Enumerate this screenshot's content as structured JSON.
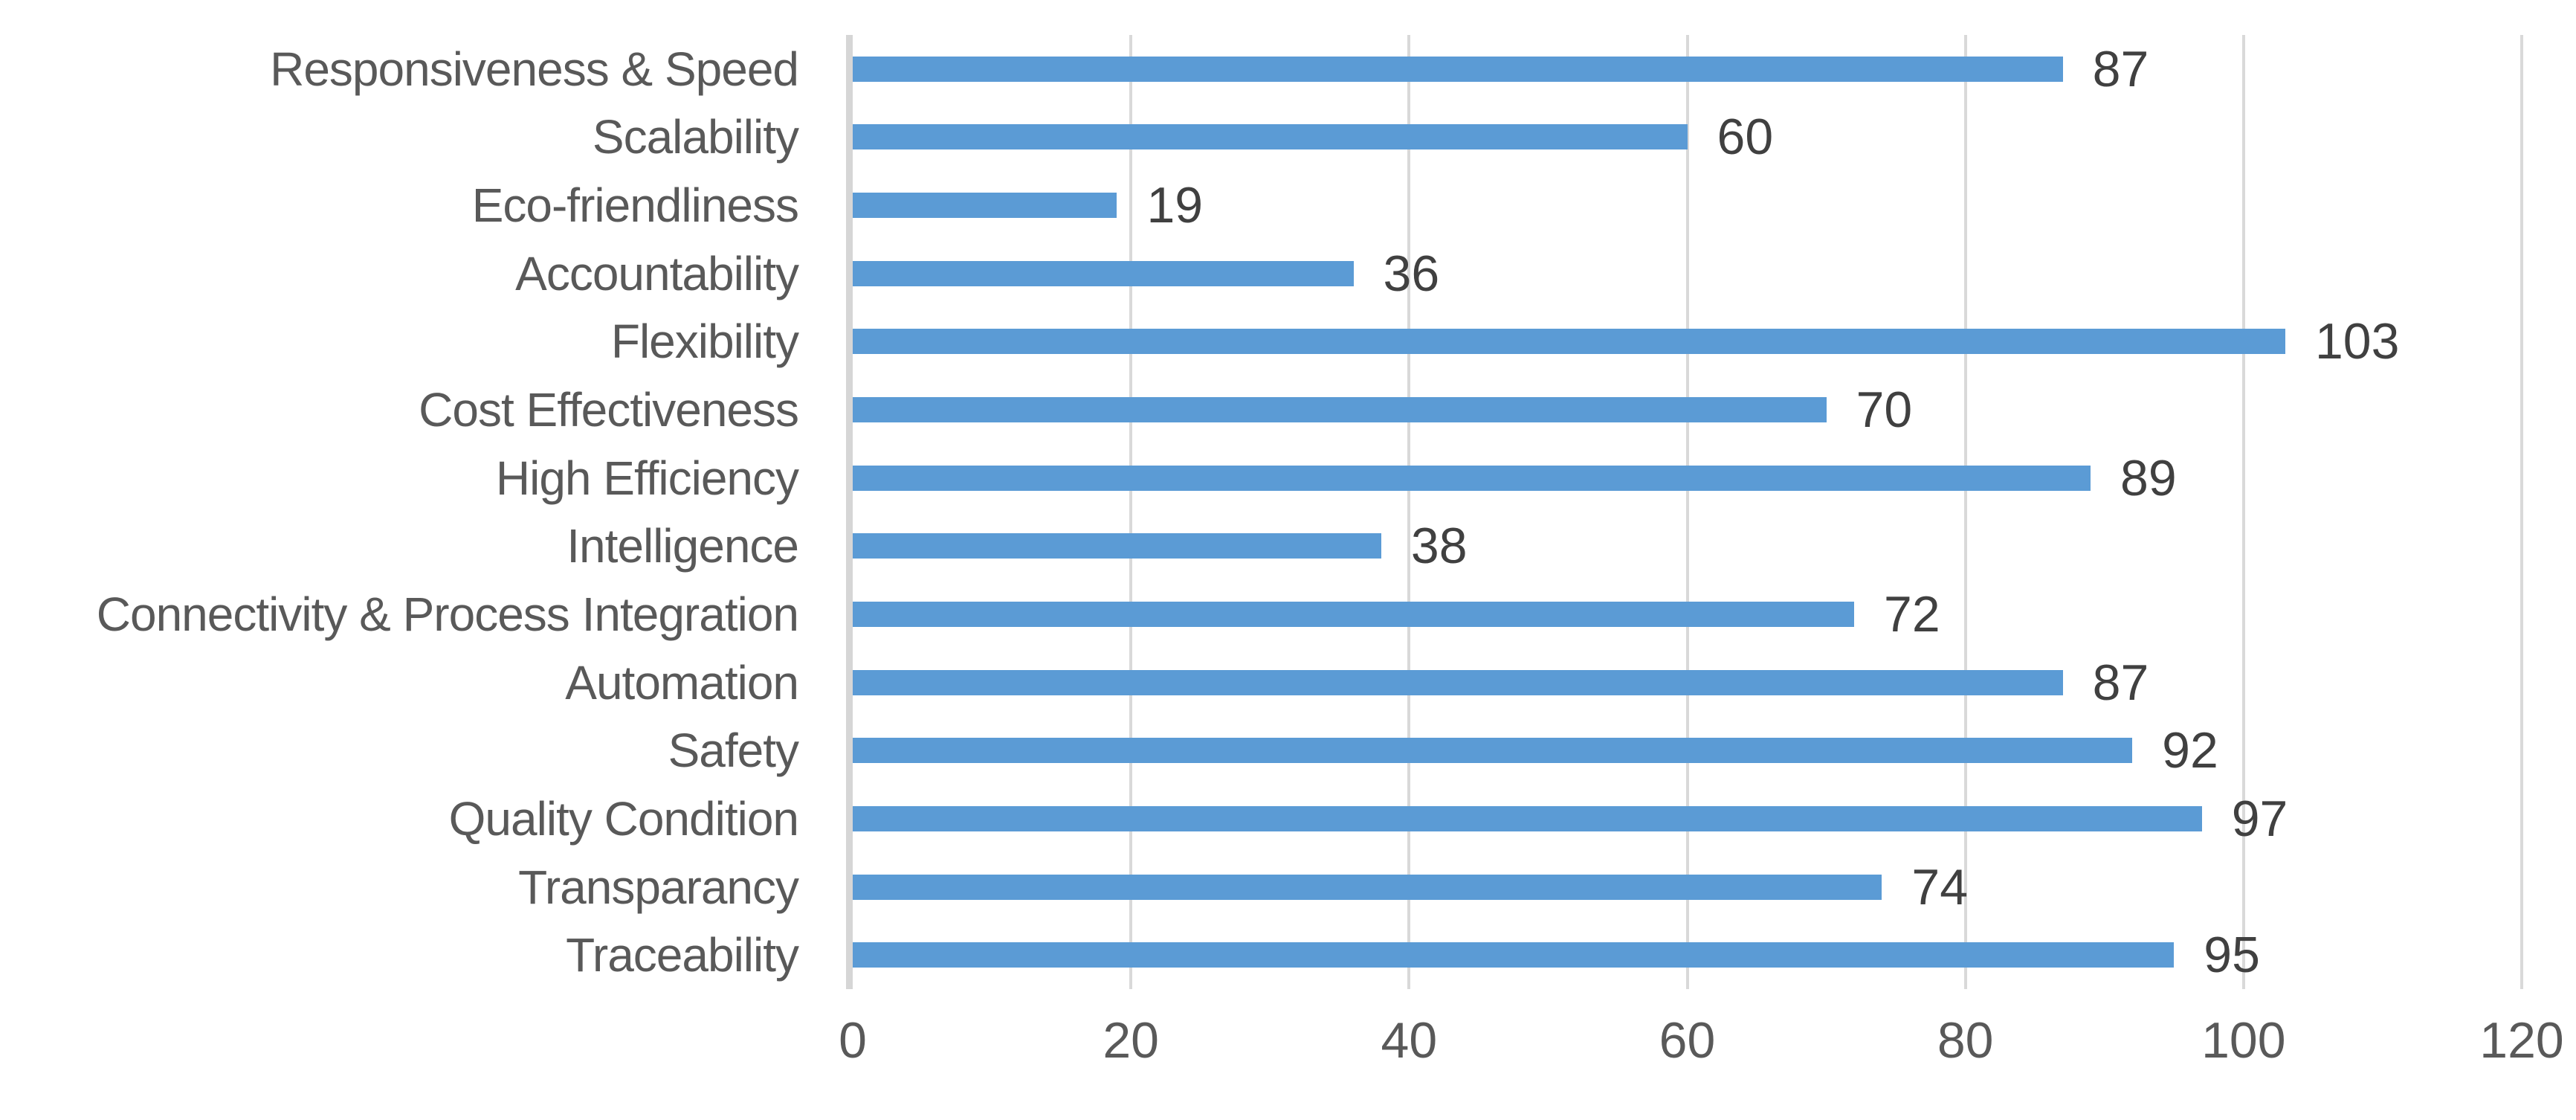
{
  "chart_data": {
    "type": "bar",
    "orientation": "horizontal",
    "categories": [
      "Responsiveness & Speed",
      "Scalability",
      "Eco-friendliness",
      "Accountability",
      "Flexibility",
      "Cost Effectiveness",
      "High Efficiency",
      "Intelligence",
      "Connectivity & Process Integration",
      "Automation",
      "Safety",
      "Quality Condition",
      "Transparancy",
      "Traceability"
    ],
    "values": [
      87,
      60,
      19,
      36,
      103,
      70,
      89,
      38,
      72,
      87,
      92,
      97,
      74,
      95
    ],
    "value_labels_shown": true,
    "x_ticks": [
      0,
      20,
      40,
      60,
      80,
      100,
      120
    ],
    "xlim": [
      0,
      120
    ],
    "grid": true,
    "legend": "none",
    "colors": {
      "bar": "#5B9BD5",
      "gridline": "#D9D9D9",
      "axis_line": "#D6D6D6",
      "category_label": "#595959",
      "tick_label": "#595959",
      "value_label": "#404040",
      "background": "#FFFFFF"
    }
  }
}
